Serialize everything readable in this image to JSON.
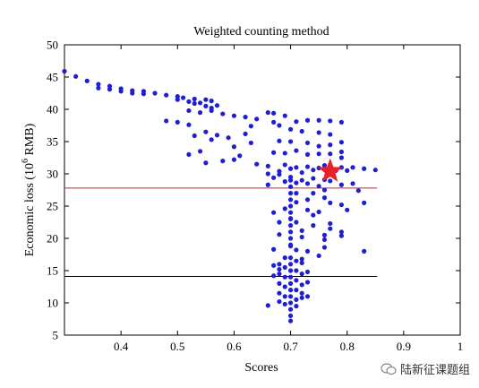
{
  "chart_data": {
    "type": "scatter",
    "title": "Weighted counting method",
    "xlabel": "Scores",
    "ylabel": "Economic loss (10",
    "ylabel_sup": "6",
    "ylabel_unit": " RMB)",
    "xlim": [
      0.3,
      1.0
    ],
    "ylim": [
      5,
      50
    ],
    "x_ticks": [
      "0.4",
      "0.5",
      "0.6",
      "0.7",
      "0.8",
      "0.9",
      "1"
    ],
    "y_ticks": [
      "5",
      "10",
      "15",
      "20",
      "25",
      "30",
      "35",
      "40",
      "45",
      "50"
    ],
    "grid": false,
    "point_color": "#1f1fd1",
    "star": {
      "x": 0.77,
      "y": 30.4,
      "color": "#e8202a"
    },
    "hlines": [
      {
        "y": 27.8,
        "color": "#d22020"
      },
      {
        "y": 14.1,
        "color": "#000000"
      }
    ],
    "points": [
      [
        0.3,
        45.9
      ],
      [
        0.32,
        45.1
      ],
      [
        0.34,
        44.4
      ],
      [
        0.36,
        43.9
      ],
      [
        0.36,
        43.3
      ],
      [
        0.38,
        43.6
      ],
      [
        0.38,
        43.1
      ],
      [
        0.4,
        43.2
      ],
      [
        0.4,
        42.8
      ],
      [
        0.42,
        42.9
      ],
      [
        0.42,
        42.5
      ],
      [
        0.44,
        42.8
      ],
      [
        0.44,
        42.4
      ],
      [
        0.46,
        42.5
      ],
      [
        0.48,
        42.2
      ],
      [
        0.5,
        42.0
      ],
      [
        0.5,
        41.5
      ],
      [
        0.51,
        41.8
      ],
      [
        0.52,
        41.2
      ],
      [
        0.53,
        41.6
      ],
      [
        0.53,
        40.9
      ],
      [
        0.54,
        41.0
      ],
      [
        0.55,
        41.5
      ],
      [
        0.55,
        40.5
      ],
      [
        0.56,
        41.3
      ],
      [
        0.56,
        40.2
      ],
      [
        0.57,
        40.6
      ],
      [
        0.52,
        39.8
      ],
      [
        0.54,
        39.5
      ],
      [
        0.56,
        39.8
      ],
      [
        0.58,
        39.3
      ],
      [
        0.6,
        39.0
      ],
      [
        0.62,
        38.8
      ],
      [
        0.63,
        37.4
      ],
      [
        0.64,
        38.5
      ],
      [
        0.67,
        38.0
      ],
      [
        0.68,
        37.5
      ],
      [
        0.66,
        39.5
      ],
      [
        0.67,
        39.4
      ],
      [
        0.69,
        39.0
      ],
      [
        0.48,
        38.2
      ],
      [
        0.5,
        38.0
      ],
      [
        0.52,
        37.6
      ],
      [
        0.53,
        35.9
      ],
      [
        0.55,
        36.5
      ],
      [
        0.56,
        35.3
      ],
      [
        0.57,
        36.0
      ],
      [
        0.59,
        35.6
      ],
      [
        0.6,
        34.2
      ],
      [
        0.62,
        36.2
      ],
      [
        0.63,
        34.8
      ],
      [
        0.54,
        33.5
      ],
      [
        0.52,
        33.0
      ],
      [
        0.55,
        31.7
      ],
      [
        0.58,
        32.0
      ],
      [
        0.6,
        32.2
      ],
      [
        0.61,
        32.8
      ],
      [
        0.64,
        31.5
      ],
      [
        0.71,
        38.1
      ],
      [
        0.73,
        38.3
      ],
      [
        0.75,
        38.3
      ],
      [
        0.77,
        38.2
      ],
      [
        0.79,
        38.0
      ],
      [
        0.7,
        36.9
      ],
      [
        0.72,
        36.6
      ],
      [
        0.75,
        36.4
      ],
      [
        0.77,
        36.1
      ],
      [
        0.79,
        34.9
      ],
      [
        0.68,
        35.1
      ],
      [
        0.7,
        35.0
      ],
      [
        0.73,
        34.8
      ],
      [
        0.75,
        34.3
      ],
      [
        0.77,
        34.5
      ],
      [
        0.79,
        33.4
      ],
      [
        0.67,
        33.3
      ],
      [
        0.69,
        33.2
      ],
      [
        0.71,
        33.6
      ],
      [
        0.73,
        33.0
      ],
      [
        0.75,
        33.1
      ],
      [
        0.77,
        33.1
      ],
      [
        0.79,
        32.5
      ],
      [
        0.66,
        31.2
      ],
      [
        0.68,
        30.4
      ],
      [
        0.69,
        31.4
      ],
      [
        0.7,
        30.8
      ],
      [
        0.71,
        31.0
      ],
      [
        0.72,
        30.2
      ],
      [
        0.73,
        31.1
      ],
      [
        0.74,
        30.6
      ],
      [
        0.75,
        30.9
      ],
      [
        0.76,
        31.3
      ],
      [
        0.78,
        30.5
      ],
      [
        0.79,
        31.0
      ],
      [
        0.8,
        30.5
      ],
      [
        0.81,
        31.0
      ],
      [
        0.83,
        30.8
      ],
      [
        0.85,
        30.6
      ],
      [
        0.66,
        30.0
      ],
      [
        0.67,
        29.4
      ],
      [
        0.68,
        29.9
      ],
      [
        0.69,
        28.8
      ],
      [
        0.7,
        29.5
      ],
      [
        0.71,
        28.6
      ],
      [
        0.72,
        29.0
      ],
      [
        0.73,
        28.5
      ],
      [
        0.74,
        29.3
      ],
      [
        0.75,
        28.1
      ],
      [
        0.76,
        29.1
      ],
      [
        0.77,
        28.9
      ],
      [
        0.79,
        28.3
      ],
      [
        0.81,
        28.5
      ],
      [
        0.82,
        27.4
      ],
      [
        0.66,
        28.3
      ],
      [
        0.67,
        24.0
      ],
      [
        0.68,
        22.5
      ],
      [
        0.69,
        24.6
      ],
      [
        0.7,
        23.1
      ],
      [
        0.71,
        25.6
      ],
      [
        0.72,
        21.2
      ],
      [
        0.73,
        24.4
      ],
      [
        0.74,
        23.6
      ],
      [
        0.75,
        24.1
      ],
      [
        0.76,
        26.3
      ],
      [
        0.77,
        22.3
      ],
      [
        0.79,
        25.2
      ],
      [
        0.8,
        24.4
      ],
      [
        0.83,
        25.5
      ],
      [
        0.72,
        20.2
      ],
      [
        0.74,
        22.0
      ],
      [
        0.76,
        19.8
      ],
      [
        0.79,
        20.4
      ],
      [
        0.68,
        20.6
      ],
      [
        0.7,
        18.8
      ],
      [
        0.73,
        18.0
      ],
      [
        0.76,
        18.6
      ],
      [
        0.79,
        21.0
      ],
      [
        0.83,
        18.0
      ],
      [
        0.67,
        18.3
      ],
      [
        0.71,
        18.2
      ],
      [
        0.7,
        29.0
      ],
      [
        0.7,
        28.0
      ],
      [
        0.7,
        27.0
      ],
      [
        0.7,
        26.0
      ],
      [
        0.7,
        25.0
      ],
      [
        0.7,
        24.0
      ],
      [
        0.7,
        23.0
      ],
      [
        0.7,
        22.0
      ],
      [
        0.7,
        21.0
      ],
      [
        0.7,
        20.0
      ],
      [
        0.7,
        19.0
      ],
      [
        0.7,
        17.0
      ],
      [
        0.7,
        16.0
      ],
      [
        0.7,
        15.0
      ],
      [
        0.7,
        14.0
      ],
      [
        0.7,
        13.0
      ],
      [
        0.7,
        12.0
      ],
      [
        0.7,
        11.0
      ],
      [
        0.7,
        10.0
      ],
      [
        0.7,
        9.0
      ],
      [
        0.7,
        8.0
      ],
      [
        0.7,
        7.2
      ],
      [
        0.71,
        27.0
      ],
      [
        0.71,
        22.5
      ],
      [
        0.71,
        16.5
      ],
      [
        0.71,
        15.0
      ],
      [
        0.71,
        13.5
      ],
      [
        0.71,
        12.0
      ],
      [
        0.71,
        10.5
      ],
      [
        0.71,
        9.5
      ],
      [
        0.69,
        17.0
      ],
      [
        0.69,
        15.5
      ],
      [
        0.69,
        14.0
      ],
      [
        0.69,
        12.5
      ],
      [
        0.69,
        11.0
      ],
      [
        0.69,
        9.8
      ],
      [
        0.68,
        16.0
      ],
      [
        0.68,
        14.5
      ],
      [
        0.68,
        13.0
      ],
      [
        0.68,
        11.5
      ],
      [
        0.68,
        10.2
      ],
      [
        0.68,
        15.2
      ],
      [
        0.67,
        15.8
      ],
      [
        0.67,
        14.2
      ],
      [
        0.66,
        9.6
      ],
      [
        0.72,
        16.2
      ],
      [
        0.72,
        14.5
      ],
      [
        0.72,
        12.8
      ],
      [
        0.72,
        11.5
      ],
      [
        0.72,
        10.8
      ],
      [
        0.73,
        14.8
      ],
      [
        0.73,
        13.2
      ],
      [
        0.73,
        11.0
      ],
      [
        0.72,
        16.8
      ],
      [
        0.75,
        17.3
      ],
      [
        0.76,
        20.5
      ],
      [
        0.77,
        21.5
      ],
      [
        0.77,
        25.5
      ],
      [
        0.76,
        27.5
      ],
      [
        0.74,
        27.0
      ],
      [
        0.73,
        26.0
      ]
    ]
  }
}
